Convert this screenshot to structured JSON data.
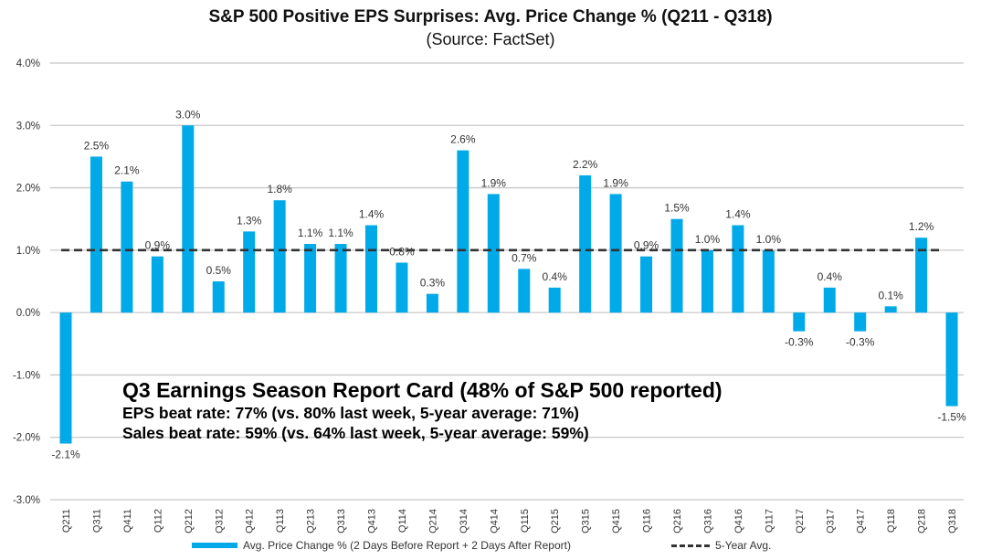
{
  "chart_data": {
    "type": "bar",
    "title": "S&P 500 Positive EPS Surprises: Avg. Price Change % (Q211 - Q318)",
    "subtitle": "(Source: FactSet)",
    "xlabel": "",
    "ylabel": "",
    "ylim": [
      -3.0,
      4.0
    ],
    "yticks": [
      4.0,
      3.0,
      2.0,
      1.0,
      0.0,
      -1.0,
      -2.0,
      -3.0
    ],
    "ytick_labels": [
      "4.0%",
      "3.0%",
      "2.0%",
      "1.0%",
      "0.0%",
      "-1.0%",
      "-2.0%",
      "-3.0%"
    ],
    "grid": true,
    "legend_position": "bottom",
    "categories": [
      "Q211",
      "Q311",
      "Q411",
      "Q112",
      "Q212",
      "Q312",
      "Q412",
      "Q113",
      "Q213",
      "Q313",
      "Q413",
      "Q114",
      "Q214",
      "Q314",
      "Q414",
      "Q115",
      "Q215",
      "Q315",
      "Q415",
      "Q116",
      "Q216",
      "Q316",
      "Q416",
      "Q117",
      "Q217",
      "Q317",
      "Q417",
      "Q118",
      "Q218",
      "Q318"
    ],
    "series": [
      {
        "name": "Avg. Price Change % (2 Days Before Report + 2 Days After Report)",
        "type": "bar",
        "color": "#00a9e8",
        "values": [
          -2.1,
          2.5,
          2.1,
          0.9,
          3.0,
          0.5,
          1.3,
          1.8,
          1.1,
          1.1,
          1.4,
          0.8,
          0.3,
          2.6,
          1.9,
          0.7,
          0.4,
          2.2,
          1.9,
          0.9,
          1.5,
          1.0,
          1.4,
          1.0,
          -0.3,
          0.4,
          -0.3,
          0.1,
          1.2,
          -1.5
        ],
        "labels": [
          "-2.1%",
          "2.5%",
          "2.1%",
          "0.9%",
          "3.0%",
          "0.5%",
          "1.3%",
          "1.8%",
          "1.1%",
          "1.1%",
          "1.4%",
          "0.8%",
          "0.3%",
          "2.6%",
          "1.9%",
          "0.7%",
          "0.4%",
          "2.2%",
          "1.9%",
          "0.9%",
          "1.5%",
          "1.0%",
          "1.4%",
          "1.0%",
          "-0.3%",
          "0.4%",
          "-0.3%",
          "0.1%",
          "1.2%",
          "-1.5%"
        ]
      },
      {
        "name": "5-Year Avg.",
        "type": "line",
        "style": "dashed",
        "color": "#333333",
        "value": 1.0
      }
    ],
    "annotations": [
      "Q3 Earnings Season Report Card (48% of S&P 500 reported)",
      "EPS beat rate: 77% (vs. 80% last week, 5-year average: 71%)",
      "Sales beat rate: 59% (vs. 64% last week, 5-year average: 59%)"
    ]
  },
  "report_card": {
    "title": "Q3 Earnings Season Report Card (48% of S&P 500 reported)",
    "eps_line": "EPS beat rate: 77% (vs. 80% last week, 5-year average: 71%)",
    "sales_line": "Sales beat rate: 59% (vs. 64% last week, 5-year average: 59%)"
  },
  "legend": {
    "bar_label": "Avg. Price Change % (2 Days Before Report + 2 Days After Report)",
    "line_label": "5-Year Avg."
  }
}
